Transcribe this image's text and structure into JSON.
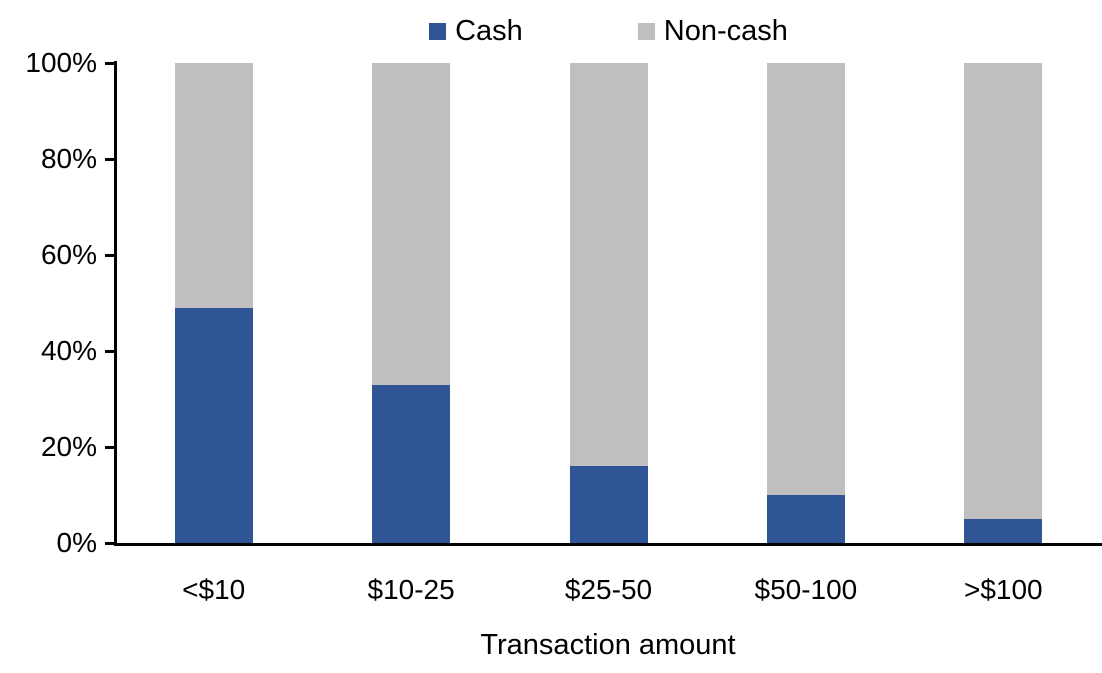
{
  "chart_data": {
    "type": "bar",
    "stacked": true,
    "orientation": "vertical",
    "title": "",
    "xlabel": "Transaction amount",
    "ylabel": "",
    "categories": [
      "<$10",
      "$10-25",
      "$25-50",
      "$50-100",
      ">$100"
    ],
    "series": [
      {
        "name": "Cash",
        "color": "#2F5597",
        "values": [
          49,
          33,
          16,
          10,
          5
        ]
      },
      {
        "name": "Non-cash",
        "color": "#BFBFBF",
        "values": [
          51,
          67,
          84,
          90,
          95
        ]
      }
    ],
    "ylim": [
      0,
      100
    ],
    "ytick_values": [
      0,
      20,
      40,
      60,
      80,
      100
    ],
    "ytick_labels": [
      "0%",
      "20%",
      "40%",
      "60%",
      "80%",
      "100%"
    ],
    "grid": false,
    "legend_position": "top-center",
    "axis_color": "#000000",
    "background_color": "#FFFFFF"
  }
}
